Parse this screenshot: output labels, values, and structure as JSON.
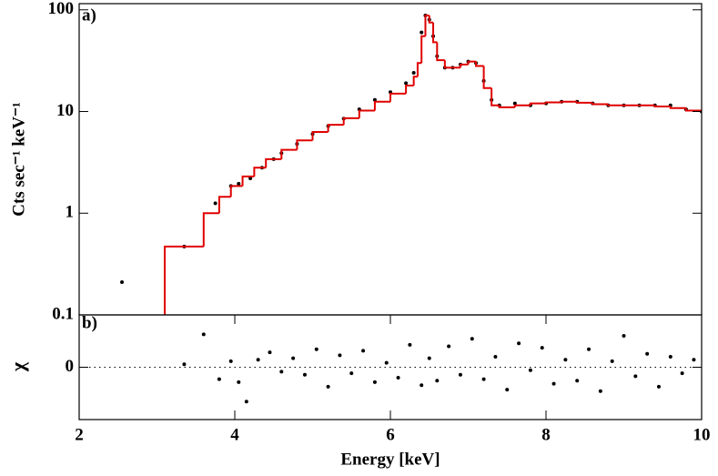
{
  "chart_data": [
    {
      "type": "spectrum",
      "panel_label": "a)",
      "ylabel": "Cts sec⁻¹ keV⁻¹",
      "xlim": [
        2,
        10
      ],
      "ylim": [
        0.1,
        115
      ],
      "ylog": true,
      "yticks": [
        0.1,
        1,
        10,
        100
      ],
      "series": [
        {
          "type": "scatter",
          "color": "#000000",
          "x": [
            2.55,
            3.35,
            3.75,
            3.95,
            4.05,
            4.2,
            4.35,
            4.5,
            4.6,
            4.8,
            5.0,
            5.2,
            5.4,
            5.6,
            5.8,
            6.0,
            6.2,
            6.3,
            6.4,
            6.45,
            6.5,
            6.55,
            6.6,
            6.7,
            6.8,
            6.9,
            7.0,
            7.1,
            7.2,
            7.3,
            7.4,
            7.6,
            7.8,
            8.0,
            8.2,
            8.4,
            8.6,
            8.8,
            9.0,
            9.2,
            9.4,
            9.6,
            9.8,
            10.0
          ],
          "values": [
            0.21,
            0.47,
            1.25,
            1.85,
            1.95,
            2.2,
            2.8,
            3.4,
            3.9,
            4.8,
            6.0,
            7.2,
            8.5,
            10.5,
            13,
            15.5,
            19,
            24,
            60,
            88,
            80,
            55,
            35,
            27,
            27,
            29,
            31,
            30,
            20,
            13,
            11.5,
            12,
            11.5,
            12,
            12.5,
            12.5,
            12,
            11.5,
            11.5,
            11.5,
            11.5,
            11.5,
            10.5,
            10
          ]
        },
        {
          "type": "step",
          "color": "#e00000",
          "bins": [
            3.1,
            3.6,
            3.8,
            3.95,
            4.1,
            4.25,
            4.4,
            4.6,
            4.8,
            5.0,
            5.2,
            5.4,
            5.6,
            5.8,
            6.0,
            6.2,
            6.3,
            6.35,
            6.4,
            6.45,
            6.5,
            6.55,
            6.6,
            6.7,
            6.8,
            6.9,
            7.0,
            7.1,
            7.2,
            7.3,
            7.4,
            7.6,
            7.8,
            8.0,
            8.2,
            8.4,
            8.6,
            8.8,
            9.0,
            9.2,
            9.4,
            9.6,
            9.8,
            10.0
          ],
          "values": [
            0.47,
            1.0,
            1.45,
            1.85,
            2.3,
            2.8,
            3.4,
            4.2,
            5.2,
            6.3,
            7.4,
            8.6,
            10.2,
            12.5,
            15,
            18,
            22,
            30,
            55,
            88,
            75,
            48,
            32,
            27,
            27,
            29,
            31,
            28,
            17,
            11.5,
            11,
            11.5,
            12,
            12.3,
            12.5,
            12.2,
            11.8,
            11.5,
            11.5,
            11.5,
            11.2,
            10.8,
            10.2
          ]
        }
      ]
    },
    {
      "type": "scatter",
      "panel_label": "b)",
      "ylabel": "χ",
      "xlabel": "Energy [keV]",
      "xlim": [
        2,
        10
      ],
      "ylim": [
        -3.5,
        3.5
      ],
      "xticks": [
        2,
        4,
        6,
        8,
        10
      ],
      "yticks": [
        0
      ],
      "zero_line": true,
      "color": "#000000",
      "x": [
        3.35,
        3.6,
        3.8,
        3.95,
        4.05,
        4.15,
        4.3,
        4.45,
        4.6,
        4.75,
        4.9,
        5.05,
        5.2,
        5.35,
        5.5,
        5.65,
        5.8,
        5.95,
        6.1,
        6.25,
        6.4,
        6.5,
        6.6,
        6.75,
        6.9,
        7.05,
        7.2,
        7.35,
        7.5,
        7.65,
        7.8,
        7.95,
        8.1,
        8.25,
        8.4,
        8.55,
        8.7,
        8.85,
        9.0,
        9.15,
        9.3,
        9.45,
        9.6,
        9.75,
        9.9
      ],
      "values": [
        0.2,
        2.2,
        -0.8,
        0.4,
        -1.0,
        -2.3,
        0.5,
        1.0,
        -0.3,
        0.6,
        -0.5,
        1.2,
        -1.3,
        0.8,
        -0.4,
        1.1,
        -1.0,
        0.3,
        -0.7,
        1.5,
        -1.2,
        0.6,
        -0.9,
        1.4,
        -0.5,
        1.9,
        -0.8,
        0.7,
        -1.5,
        1.6,
        -0.2,
        1.3,
        -1.1,
        0.5,
        -0.9,
        1.2,
        -1.6,
        0.4,
        2.1,
        -0.6,
        0.9,
        -1.3,
        0.7,
        -0.4,
        0.5
      ]
    }
  ]
}
